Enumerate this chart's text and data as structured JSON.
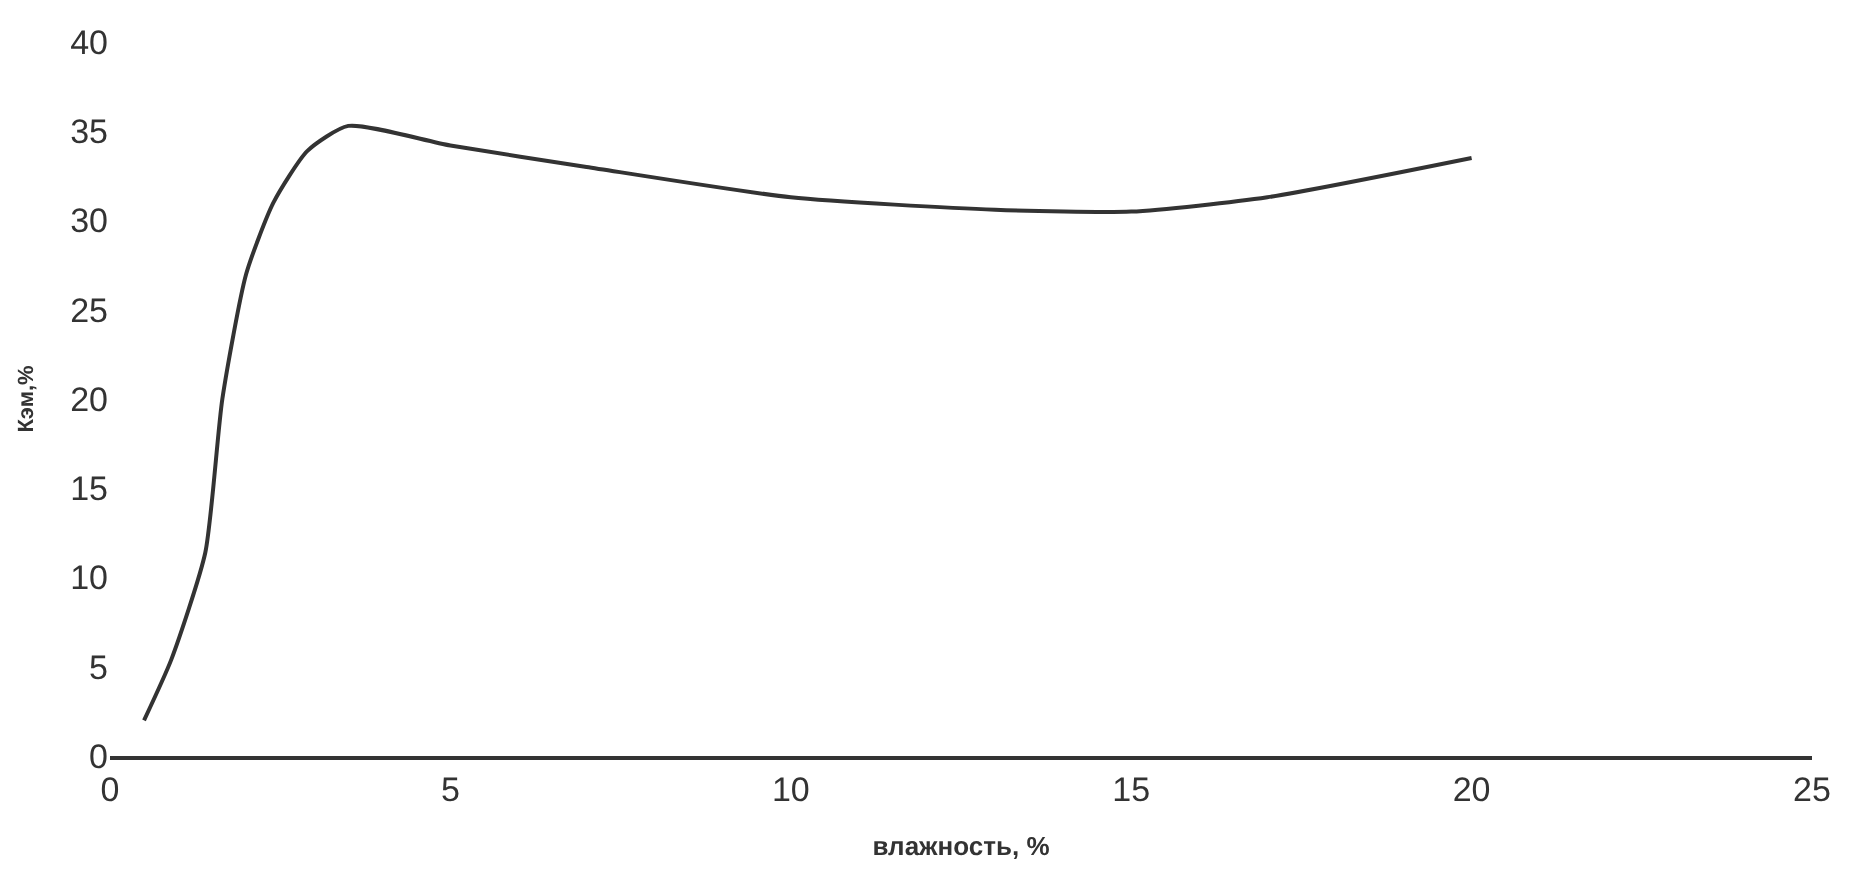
{
  "chart_data": {
    "type": "line",
    "xlabel": "влажность, %",
    "ylabel": "Кэм,%",
    "x": [
      0.5,
      0.9,
      1.4,
      1.65,
      2.0,
      2.4,
      2.9,
      3.5,
      5,
      7,
      10,
      13,
      15,
      17,
      20
    ],
    "values": [
      2,
      5.4,
      11.4,
      20,
      27,
      31,
      33.9,
      35.3,
      34.2,
      33,
      31.3,
      30.6,
      30.5,
      31.3,
      33.5
    ],
    "color": "#333333",
    "marker": "none",
    "line_style": "solid",
    "legend": false,
    "xlim": [
      0,
      25
    ],
    "xticks": [
      0,
      5,
      10,
      15,
      20,
      25
    ],
    "ylim": [
      0,
      40
    ],
    "yticks": [
      0,
      5,
      10,
      15,
      20,
      25,
      30,
      35,
      40
    ]
  }
}
